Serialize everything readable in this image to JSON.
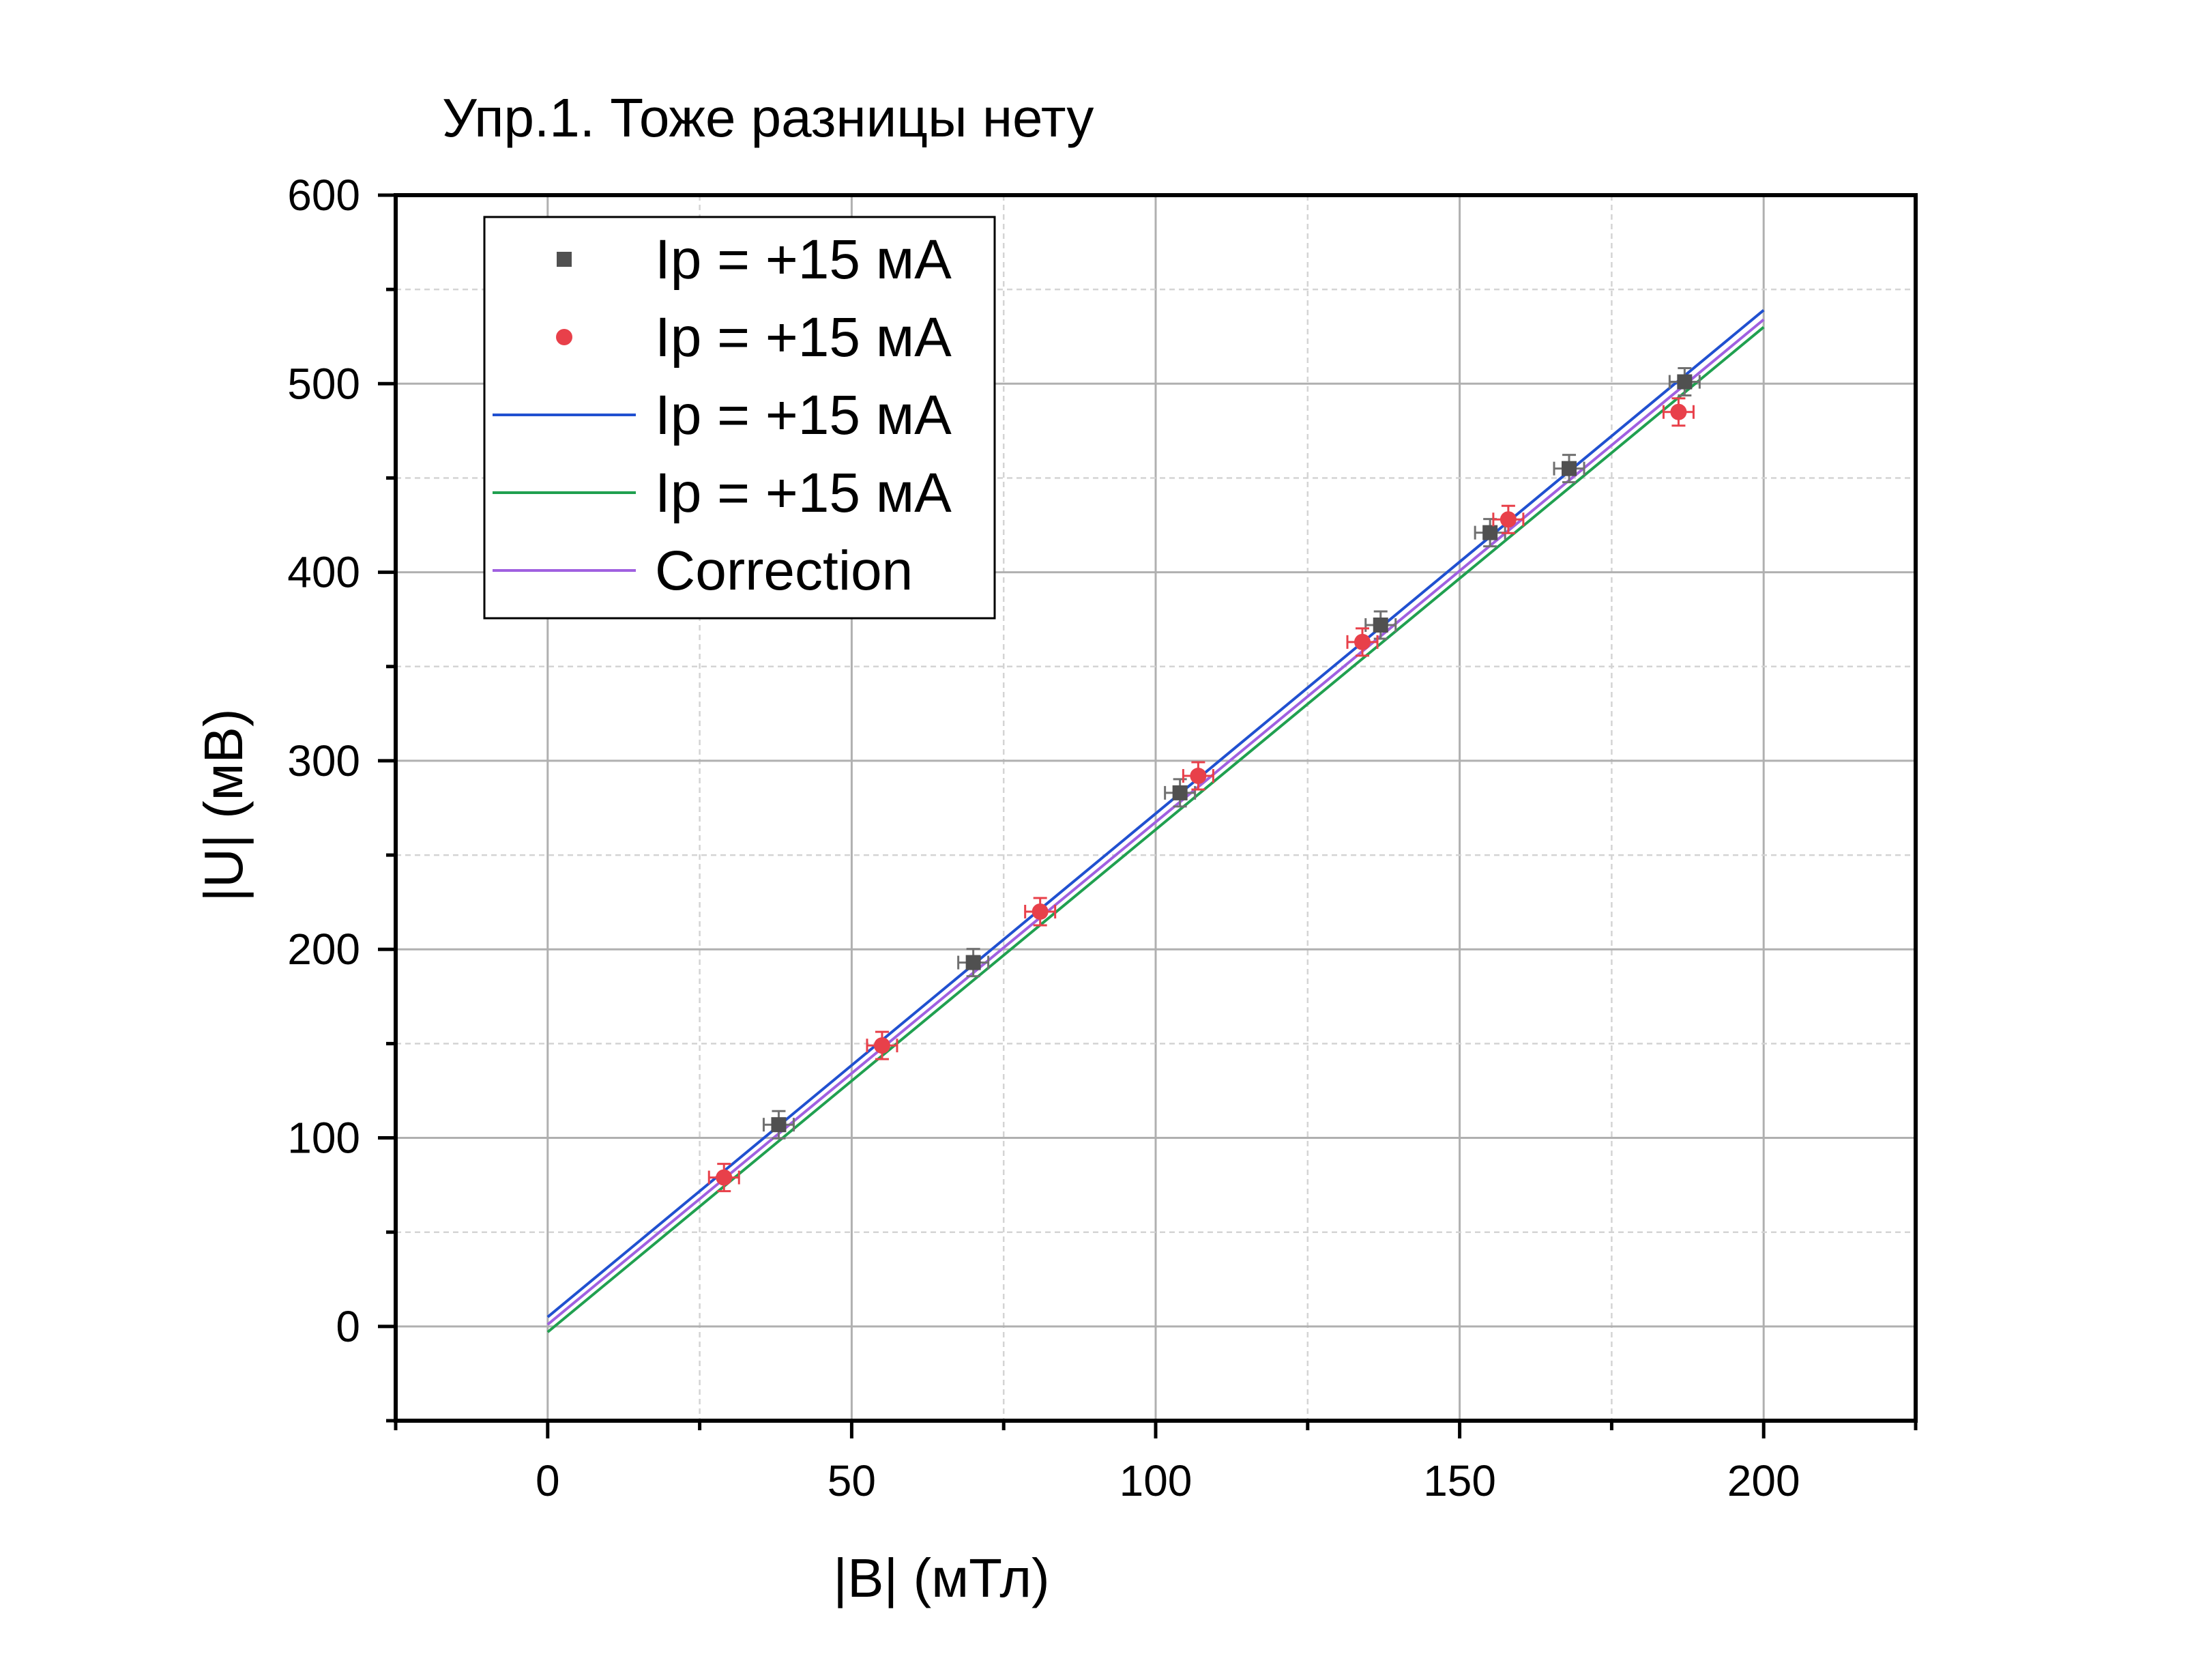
{
  "chart_data": {
    "type": "scatter",
    "title": "Упр.1. Тоже разницы нету",
    "xlabel": "|B| (мТл)",
    "ylabel": "|U| (мВ)",
    "xlim": [
      -25,
      225
    ],
    "ylim": [
      -50,
      600
    ],
    "xticks": [
      0,
      50,
      100,
      150,
      200
    ],
    "yticks": [
      0,
      100,
      200,
      300,
      400,
      500,
      600
    ],
    "grid": true,
    "legend_position": "top-left",
    "series": [
      {
        "name": "Ip = +15 мА",
        "kind": "points",
        "marker": "square",
        "color": "#505050",
        "x": [
          38,
          70,
          104,
          137,
          155,
          168,
          187
        ],
        "y": [
          107,
          193,
          283,
          372,
          421,
          455,
          501
        ]
      },
      {
        "name": "Ip = +15 мА",
        "kind": "points",
        "marker": "circle",
        "color": "#e8404a",
        "x": [
          29,
          55,
          81,
          107,
          134,
          158,
          186
        ],
        "y": [
          79,
          149,
          220,
          292,
          363,
          428,
          485
        ]
      },
      {
        "name": "Ip = +15 мА",
        "kind": "line",
        "color": "#2050d0",
        "x": [
          0,
          200
        ],
        "y": [
          5,
          539
        ]
      },
      {
        "name": "Ip = +15 мА",
        "kind": "line",
        "color": "#20a050",
        "x": [
          0,
          200
        ],
        "y": [
          -3,
          530
        ]
      },
      {
        "name": "Correction",
        "kind": "line",
        "color": "#a060e0",
        "x": [
          0,
          200
        ],
        "y": [
          1,
          534
        ]
      }
    ]
  }
}
